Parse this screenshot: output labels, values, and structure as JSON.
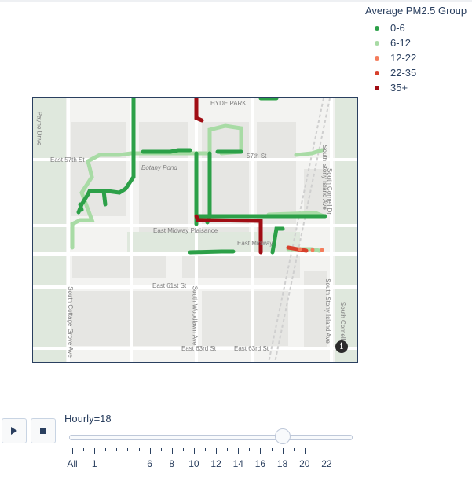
{
  "legend": {
    "title": "Average PM2.5 Group",
    "items": [
      {
        "label": "0-6",
        "color": "#2ca048"
      },
      {
        "label": "6-12",
        "color": "#a8dba5"
      },
      {
        "label": "12-22",
        "color": "#f47c5c"
      },
      {
        "label": "22-35",
        "color": "#d7402c"
      },
      {
        "label": "35+",
        "color": "#a00d14"
      }
    ]
  },
  "map": {
    "labels": {
      "hyde_park": "HYDE PARK",
      "east_57th": "East 57th St",
      "east_57th_b": "57th St",
      "botany_pond": "Botany Pond",
      "midway": "East Midway Plaisance",
      "midway_b": "East Midway",
      "east_61st": "East 61st St",
      "east_63rd_a": "East 63rd St",
      "east_63rd_b": "East 63rd St",
      "payne": "Payne Drive",
      "cottage": "South Cottage Grove Ave",
      "woodlawn": "South Woodlawn Ave",
      "stony_a": "South Stony Island Ave",
      "stony_b": "South Stony Island Ave",
      "cornell_a": "South Cornell Dr",
      "cornell_b": "South Cornell Dr"
    },
    "info_icon": "i"
  },
  "controls": {
    "play_icon": "play-icon",
    "stop_icon": "stop-icon",
    "current_prefix": "Hourly=",
    "current_value": "18"
  },
  "slider": {
    "steps": [
      "All",
      "0",
      "1",
      "2",
      "3",
      "4",
      "5",
      "6",
      "7",
      "8",
      "9",
      "10",
      "11",
      "12",
      "13",
      "14",
      "15",
      "16",
      "17",
      "18",
      "19",
      "20",
      "21",
      "22",
      "23"
    ],
    "labeled": [
      "All",
      "1",
      "6",
      "8",
      "10",
      "12",
      "14",
      "16",
      "18",
      "20",
      "22"
    ],
    "selected": "18"
  }
}
